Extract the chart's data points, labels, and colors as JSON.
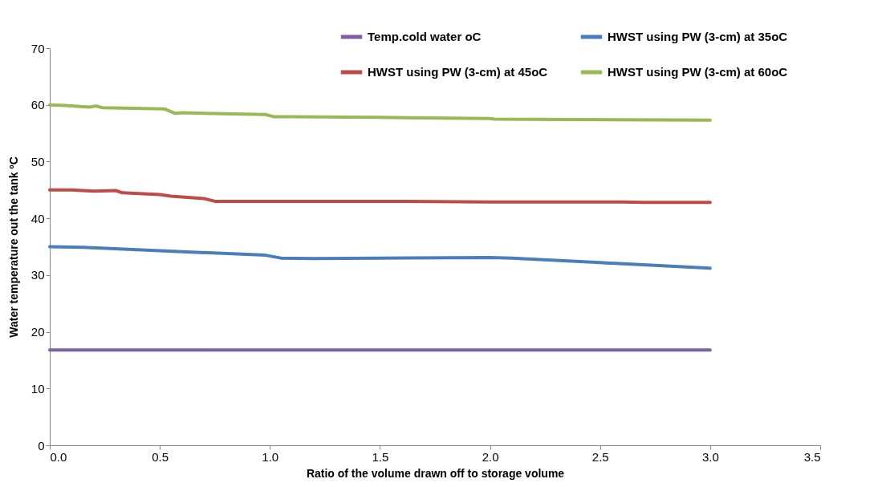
{
  "chart_data": {
    "type": "line",
    "xlabel": "Ratio of the volume drawn off to storage volume",
    "ylabel": "Water temperature out the tank ºC",
    "xlim": [
      0,
      3.5
    ],
    "xticks": [
      {
        "value": 0,
        "label": "0.0"
      },
      0.5,
      {
        "value": 1,
        "label": "1.0"
      },
      1.5,
      {
        "value": 2,
        "label": "2.0"
      },
      2.5,
      {
        "value": 3,
        "label": "3.0"
      },
      3.5
    ],
    "ylim": [
      0,
      70
    ],
    "yticks": [
      0,
      10,
      20,
      30,
      40,
      50,
      60,
      70
    ],
    "grid": false,
    "legend": "top right",
    "line_style": "solid",
    "series": [
      {
        "name": "Temp.cold water oC",
        "color": "#7e5fa3",
        "x": [
          0,
          3.0
        ],
        "values": [
          16.8,
          16.8
        ]
      },
      {
        "name": "HWST using PW (3-cm) at 35oC",
        "color": "#4a7ebb",
        "x": [
          0,
          0.15,
          0.5,
          0.98,
          1.05,
          1.2,
          1.5,
          2.0,
          2.1,
          2.5,
          3.0
        ],
        "values": [
          35,
          34.9,
          34.3,
          33.5,
          33.0,
          32.9,
          33.0,
          33.1,
          33.0,
          32.2,
          31.2
        ]
      },
      {
        "name": "HWST using PW (3-cm) at 45oC",
        "color": "#be4b48",
        "x": [
          0,
          0.1,
          0.2,
          0.3,
          0.33,
          0.5,
          0.55,
          0.7,
          0.75,
          1.0,
          1.6,
          2.0,
          2.6,
          2.7,
          3.0
        ],
        "values": [
          45,
          45,
          44.8,
          44.9,
          44.5,
          44.2,
          43.9,
          43.5,
          43.0,
          43.0,
          43.0,
          42.9,
          42.9,
          42.8,
          42.8
        ]
      },
      {
        "name": "HWST using PW (3-cm) at 60oC",
        "color": "#98b954",
        "x": [
          0,
          0.07,
          0.18,
          0.21,
          0.24,
          0.52,
          0.57,
          0.6,
          0.98,
          1.02,
          1.1,
          1.5,
          2.0,
          2.02,
          3.0
        ],
        "values": [
          60,
          59.9,
          59.6,
          59.8,
          59.5,
          59.3,
          58.5,
          58.6,
          58.3,
          57.9,
          57.9,
          57.8,
          57.6,
          57.5,
          57.3
        ]
      }
    ]
  }
}
